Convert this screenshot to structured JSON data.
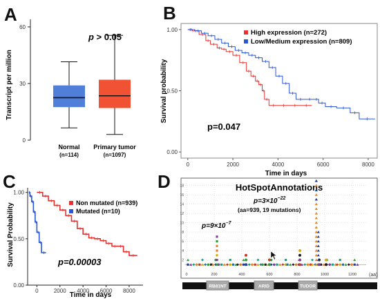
{
  "panels": {
    "A": {
      "letter": "A",
      "chart_data": {
        "type": "box",
        "categories": [
          "Normal",
          "Primary tumor"
        ],
        "category_lines2": [
          "(n=114)",
          "(n=1097)"
        ],
        "ylabel": "Transcript per million",
        "ylim": [
          0,
          64
        ],
        "yticks": [
          0,
          30,
          60
        ],
        "annotation": "p > 0.05",
        "boxes": [
          {
            "min": 6.5,
            "q1": 17.5,
            "median": 22.5,
            "q3": 29,
            "max": 41.5,
            "color": "#4f7fd8"
          },
          {
            "min": 3,
            "q1": 17,
            "median": 23.5,
            "q3": 32,
            "max": 55.5,
            "color": "#f25234"
          }
        ]
      }
    },
    "B": {
      "letter": "B",
      "chart_data": {
        "type": "line",
        "xlabel": "Time in days",
        "ylabel": "Survival probability",
        "xlim": [
          -300,
          8400
        ],
        "ylim": [
          -0.05,
          1.05
        ],
        "xticks": [
          0,
          2000,
          4000,
          6000,
          8000
        ],
        "yticks": [
          "0.00",
          "0.50",
          "1.00"
        ],
        "ytick_values": [
          0,
          0.5,
          1
        ],
        "annotation": "p=0.047",
        "series": [
          {
            "name": "High expression (n=272)",
            "color": "#e8302e",
            "x": [
              0,
              200,
              500,
              800,
              1000,
              1300,
              1500,
              1700,
              2000,
              2300,
              2600,
              2800,
              3000,
              3150,
              3300,
              3400,
              3600,
              4000,
              4500,
              5000,
              5500
            ],
            "y": [
              1.0,
              0.99,
              0.96,
              0.91,
              0.88,
              0.85,
              0.84,
              0.82,
              0.79,
              0.73,
              0.66,
              0.62,
              0.58,
              0.55,
              0.5,
              0.43,
              0.38,
              0.38,
              0.38,
              0.38,
              0.38
            ]
          },
          {
            "name": "Low/Medium expression (n=809)",
            "color": "#2a55d6",
            "x": [
              0,
              300,
              600,
              900,
              1200,
              1500,
              1800,
              2100,
              2400,
              2700,
              3000,
              3300,
              3600,
              3900,
              4200,
              4500,
              4800,
              5200,
              5600,
              5800,
              6100,
              6600,
              7200,
              7600,
              8300
            ],
            "y": [
              1.0,
              0.99,
              0.97,
              0.95,
              0.92,
              0.89,
              0.86,
              0.83,
              0.81,
              0.79,
              0.77,
              0.74,
              0.69,
              0.62,
              0.56,
              0.48,
              0.43,
              0.43,
              0.43,
              0.4,
              0.37,
              0.36,
              0.32,
              0.27,
              0.27
            ]
          }
        ]
      }
    },
    "C": {
      "letter": "C",
      "chart_data": {
        "type": "line",
        "xlabel": "Time in days",
        "ylabel": "Survival Probability",
        "xlim": [
          -800,
          9200
        ],
        "ylim": [
          0,
          1.05
        ],
        "xticks": [
          0,
          2000,
          4000,
          6000,
          8000
        ],
        "yticks": [
          "0.00",
          "0.50",
          "1.00"
        ],
        "ytick_values": [
          0,
          0.5,
          1
        ],
        "annotation": "p=0.00003",
        "series": [
          {
            "name": "Non mutated (n=939)",
            "color": "#e8302e",
            "x": [
              0,
              500,
              1000,
              1500,
              2000,
              2500,
              3000,
              3500,
              4000,
              4500,
              5000,
              5500,
              6000,
              6500,
              7000,
              7500,
              8000,
              8700
            ],
            "y": [
              1.0,
              0.96,
              0.91,
              0.86,
              0.81,
              0.75,
              0.69,
              0.61,
              0.55,
              0.51,
              0.5,
              0.48,
              0.45,
              0.42,
              0.42,
              0.36,
              0.32,
              0.32
            ]
          },
          {
            "name": "Mutated (n=10)",
            "color": "#2a55d6",
            "x": [
              -700,
              -600,
              -450,
              -300,
              -150,
              0,
              200,
              400,
              800
            ],
            "y": [
              1.0,
              0.96,
              0.9,
              0.79,
              0.68,
              0.57,
              0.46,
              0.35,
              0.35
            ]
          }
        ]
      }
    },
    "D": {
      "letter": "D",
      "chart_data": {
        "type": "scatter",
        "title": "HotSpotAnnotations",
        "annotation_main": "p=3×10",
        "annotation_main_exp": "−22",
        "annotation_sub": "(aa=939, 19 mutations)",
        "annotation_left": "p=9×10",
        "annotation_left_exp": "−7",
        "xlim": [
          -10,
          1300
        ],
        "ylim": [
          0,
          19
        ],
        "xticks": [
          0,
          200,
          400,
          600,
          800,
          1000,
          1200
        ],
        "yticks": [
          2,
          4,
          6,
          8,
          10,
          12,
          14,
          16,
          18
        ],
        "x_unit": "(aa)",
        "hotspot_939": {
          "x": 939,
          "max": 19
        },
        "hotspot_220": {
          "x": 220,
          "max": 7
        },
        "domains": [
          {
            "label": "RB81NT",
            "start": 145,
            "end": 305
          },
          {
            "label": "ARID",
            "start": 490,
            "end": 630
          },
          {
            "label": "TUDOR",
            "start": 810,
            "end": 945
          }
        ],
        "palette": [
          "#e0892b",
          "#1f3f95",
          "#2e9e3c",
          "#c0392b",
          "#7d3c98",
          "#1c1c1c",
          "#d4ac0d",
          "#16a085",
          "#e67e22",
          "#2471a3"
        ]
      }
    }
  },
  "colors": {
    "red": "#e8302e",
    "blue": "#2a55d6",
    "axis": "#222222"
  }
}
